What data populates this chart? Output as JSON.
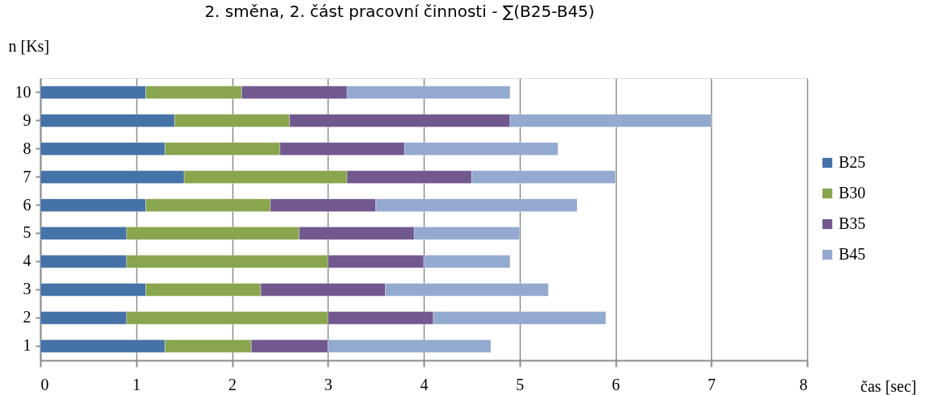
{
  "chart_data": {
    "type": "bar",
    "orientation": "horizontal",
    "stacked": true,
    "title": "2. směna, 2. část pracovní činnosti - ∑(B25-B45)",
    "xlabel": "čas [sec]",
    "ylabel": "n [Ks]",
    "categories": [
      "10",
      "9",
      "8",
      "7",
      "6",
      "5",
      "4",
      "3",
      "2",
      "1"
    ],
    "series": [
      {
        "name": "B25",
        "color": "#4572a7",
        "values": [
          1.1,
          1.4,
          1.3,
          1.5,
          1.1,
          0.9,
          0.9,
          1.1,
          0.9,
          1.3
        ]
      },
      {
        "name": "B30",
        "color": "#89a54e",
        "values": [
          1.0,
          1.2,
          1.2,
          1.7,
          1.3,
          1.8,
          2.1,
          1.2,
          2.1,
          0.9
        ]
      },
      {
        "name": "B35",
        "color": "#71588f",
        "values": [
          1.1,
          2.3,
          1.3,
          1.3,
          1.1,
          1.2,
          1.0,
          1.3,
          1.1,
          0.8
        ]
      },
      {
        "name": "B45",
        "color": "#93a9cf",
        "values": [
          1.7,
          2.1,
          1.6,
          1.5,
          2.1,
          1.1,
          0.9,
          1.7,
          1.8,
          1.7
        ]
      }
    ],
    "xlim": [
      0,
      8
    ],
    "xticks": [
      0,
      1,
      2,
      3,
      4,
      5,
      6,
      7,
      8
    ],
    "grid": "x",
    "legend": "right"
  }
}
